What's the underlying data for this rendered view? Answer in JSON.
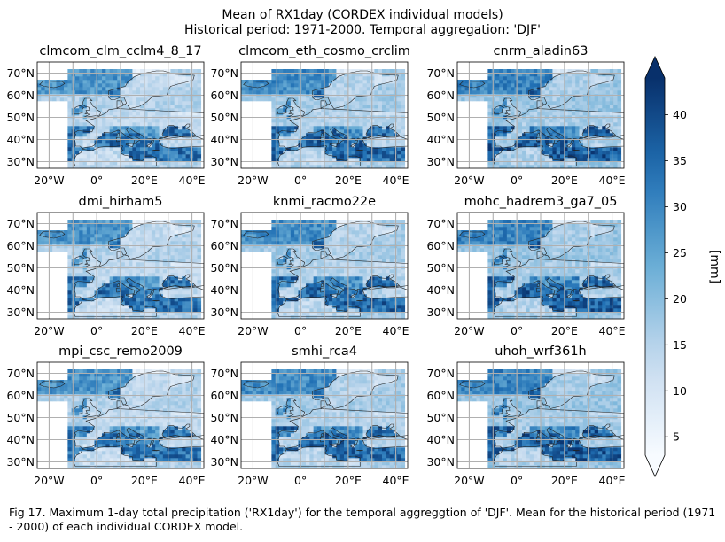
{
  "figure": {
    "title_line1": "Mean of RX1day (CORDEX individual models)",
    "title_line2": "Historical period: 1971-2000. Temporal aggregation: 'DJF'",
    "caption": "Fig 17. Maximum 1-day total precipitation ('RX1day') for the temporal aggreggtion of 'DJF'. Mean for the historical period (1971 - 2000) of each individual CORDEX model."
  },
  "panels": [
    {
      "title": "clmcom_clm_cclm4_8_17"
    },
    {
      "title": "clmcom_eth_cosmo_crclim"
    },
    {
      "title": "cnrm_aladin63"
    },
    {
      "title": "dmi_hirham5"
    },
    {
      "title": "knmi_racmo22e"
    },
    {
      "title": "mohc_hadrem3_ga7_05"
    },
    {
      "title": "mpi_csc_remo2009"
    },
    {
      "title": "smhi_rca4"
    },
    {
      "title": "uhoh_wrf361h"
    }
  ],
  "map_axes": {
    "lon_range": [
      -25,
      45
    ],
    "lat_range": [
      27,
      75
    ],
    "lon_ticks": [
      -20,
      0,
      20,
      40
    ],
    "lon_tick_labels": [
      "20°W",
      "0°",
      "20°E",
      "40°E"
    ],
    "lat_ticks": [
      30,
      40,
      50,
      60,
      70
    ],
    "lat_tick_labels": [
      "30°N",
      "40°N",
      "50°N",
      "60°N",
      "70°N"
    ],
    "gridlines_lon": [
      -20,
      -10,
      0,
      10,
      20,
      30,
      40
    ],
    "gridlines_lat": [
      30,
      40,
      50,
      60,
      70
    ],
    "grid": true,
    "gridline_color": "#b0b0b0"
  },
  "colorbar": {
    "label": "[mm]",
    "min": 3,
    "max": 44,
    "ticks": [
      5,
      10,
      15,
      20,
      25,
      30,
      35,
      40
    ],
    "extend": "both",
    "colormap": "Blues",
    "color_low": "#f7fbff",
    "color_high": "#08306b"
  }
}
